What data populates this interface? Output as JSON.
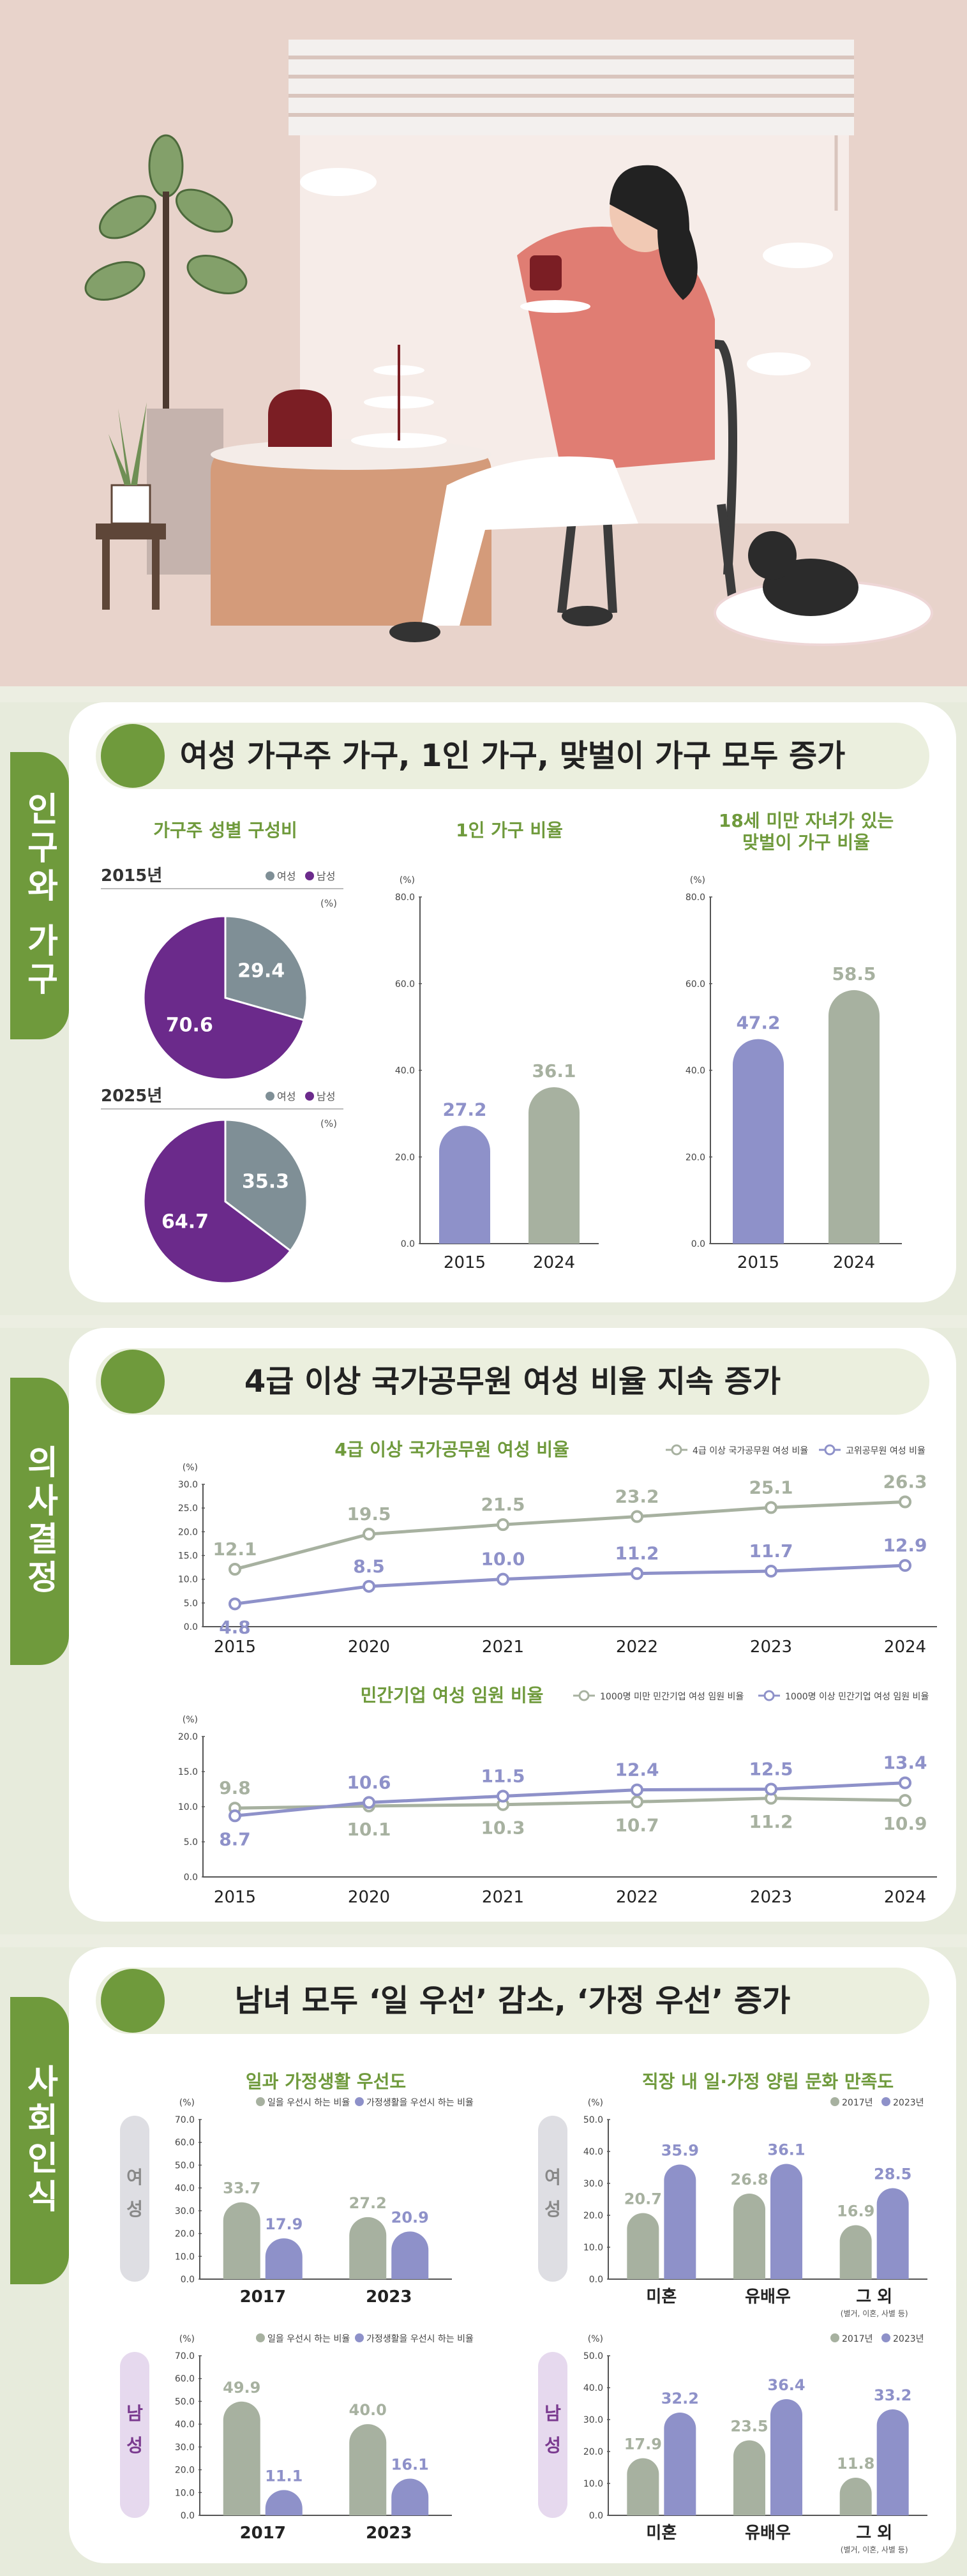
{
  "sections": [
    {
      "tab": "인구와 가구",
      "title": "여성 가구주 가구, 1인 가구, 맞벌이 가구 모두 증가"
    },
    {
      "tab": "의사결정",
      "title": "4급 이상 국가공무원 여성 비율 지속 증가"
    },
    {
      "tab": "사회인식",
      "title": "남녀 모두 ‘일 우선’ 감소, ‘가정 우선’ 증가"
    }
  ],
  "chart_data": [
    {
      "id": "pie2015",
      "type": "pie",
      "title": "가구주 성별 구성비",
      "label": "2015년",
      "unit": "(%)",
      "legend": [
        "여성",
        "남성"
      ],
      "values": [
        29.4,
        70.6
      ],
      "colors": [
        "#7f8f96",
        "#6b2a8b"
      ]
    },
    {
      "id": "pie2025",
      "type": "pie",
      "label": "2025년",
      "unit": "(%)",
      "legend": [
        "여성",
        "남성"
      ],
      "values": [
        35.3,
        64.7
      ],
      "colors": [
        "#7f8f96",
        "#6b2a8b"
      ]
    },
    {
      "id": "single",
      "type": "bar",
      "title": "1인 가구 비율",
      "unit": "(%)",
      "categories": [
        "2015",
        "2024"
      ],
      "values": [
        27.2,
        36.1
      ],
      "ylim": [
        0,
        80
      ],
      "yticks": [
        "0.0",
        "20.0",
        "40.0",
        "60.0",
        "80.0"
      ],
      "colors": [
        "#8e91c9",
        "#a7b1a0"
      ]
    },
    {
      "id": "dual",
      "type": "bar",
      "title": "18세 미만 자녀가 있는 맞벌이 가구 비율",
      "title_lines": [
        "18세 미만 자녀가 있는",
        "맞벌이 가구 비율"
      ],
      "unit": "(%)",
      "categories": [
        "2015",
        "2024"
      ],
      "values": [
        47.2,
        58.5
      ],
      "ylim": [
        0,
        80
      ],
      "yticks": [
        "0.0",
        "20.0",
        "40.0",
        "60.0",
        "80.0"
      ],
      "colors": [
        "#8e91c9",
        "#a7b1a0"
      ]
    },
    {
      "id": "civil",
      "type": "line",
      "title": "4급 이상 국가공무원 여성 비율",
      "unit": "(%)",
      "x": [
        "2015",
        "2020",
        "2021",
        "2022",
        "2023",
        "2024"
      ],
      "ylim": [
        0,
        30
      ],
      "yticks": [
        "0.0",
        "5.0",
        "10.0",
        "15.0",
        "20.0",
        "25.0",
        "30.0"
      ],
      "series": [
        {
          "name": "4급 이상 국가공무원 여성 비율",
          "values": [
            12.1,
            19.5,
            21.5,
            23.2,
            25.1,
            26.3
          ],
          "color": "#a7b1a0"
        },
        {
          "name": "고위공무원 여성 비율",
          "values": [
            4.8,
            8.5,
            10.0,
            11.2,
            11.7,
            12.9
          ],
          "color": "#8e91c9"
        }
      ]
    },
    {
      "id": "exec",
      "type": "line",
      "title": "민간기업 여성 임원 비율",
      "unit": "(%)",
      "x": [
        "2015",
        "2020",
        "2021",
        "2022",
        "2023",
        "2024"
      ],
      "ylim": [
        0,
        20
      ],
      "yticks": [
        "0.0",
        "5.0",
        "10.0",
        "15.0",
        "20.0"
      ],
      "series": [
        {
          "name": "1000명 미만 민간기업 여성 임원 비율",
          "values": [
            9.8,
            10.1,
            10.3,
            10.7,
            11.2,
            10.9
          ],
          "color": "#a7b1a0"
        },
        {
          "name": "1000명 이상 민간기업 여성 임원 비율",
          "values": [
            8.7,
            10.6,
            11.5,
            12.4,
            12.5,
            13.4
          ],
          "color": "#8e91c9"
        }
      ]
    },
    {
      "id": "wlF",
      "type": "bar",
      "title": "일과 가정생활 우선도",
      "side": "여성",
      "unit": "(%)",
      "categories": [
        "2017",
        "2023"
      ],
      "ylim": [
        0,
        70
      ],
      "yticks": [
        "0.0",
        "10.0",
        "20.0",
        "30.0",
        "40.0",
        "50.0",
        "60.0",
        "70.0"
      ],
      "series": [
        {
          "name": "일을 우선시 하는 비율",
          "values": [
            33.7,
            27.2
          ],
          "color": "#a7b1a0"
        },
        {
          "name": "가정생활을 우선시 하는 비율",
          "values": [
            17.9,
            20.9
          ],
          "color": "#8e91c9"
        }
      ]
    },
    {
      "id": "wlM",
      "type": "bar",
      "side": "남성",
      "unit": "(%)",
      "categories": [
        "2017",
        "2023"
      ],
      "ylim": [
        0,
        70
      ],
      "yticks": [
        "0.0",
        "10.0",
        "20.0",
        "30.0",
        "40.0",
        "50.0",
        "60.0",
        "70.0"
      ],
      "series": [
        {
          "name": "일을 우선시 하는 비율",
          "values": [
            49.9,
            40.0
          ],
          "color": "#a7b1a0"
        },
        {
          "name": "가정생활을 우선시 하는 비율",
          "values": [
            11.1,
            16.1
          ],
          "color": "#8e91c9"
        }
      ]
    },
    {
      "id": "satF",
      "type": "bar",
      "title": "직장 내 일·가정 양립 문화 만족도",
      "side": "여성",
      "unit": "(%)",
      "categories": [
        "미혼",
        "유배우",
        "그 외"
      ],
      "subnote": "(별거, 이혼, 사별 등)",
      "ylim": [
        0,
        50
      ],
      "yticks": [
        "0.0",
        "10.0",
        "20.0",
        "30.0",
        "40.0",
        "50.0"
      ],
      "series": [
        {
          "name": "2017년",
          "values": [
            20.7,
            26.8,
            16.9
          ],
          "color": "#a7b1a0"
        },
        {
          "name": "2023년",
          "values": [
            35.9,
            36.1,
            28.5
          ],
          "color": "#8e91c9"
        }
      ]
    },
    {
      "id": "satM",
      "type": "bar",
      "side": "남성",
      "unit": "(%)",
      "categories": [
        "미혼",
        "유배우",
        "그 외"
      ],
      "subnote": "(별거, 이혼, 사별 등)",
      "ylim": [
        0,
        50
      ],
      "yticks": [
        "0.0",
        "10.0",
        "20.0",
        "30.0",
        "40.0",
        "50.0"
      ],
      "series": [
        {
          "name": "2017년",
          "values": [
            17.9,
            23.5,
            11.8
          ],
          "color": "#a7b1a0"
        },
        {
          "name": "2023년",
          "values": [
            32.2,
            36.4,
            33.2
          ],
          "color": "#8e91c9"
        }
      ]
    }
  ]
}
